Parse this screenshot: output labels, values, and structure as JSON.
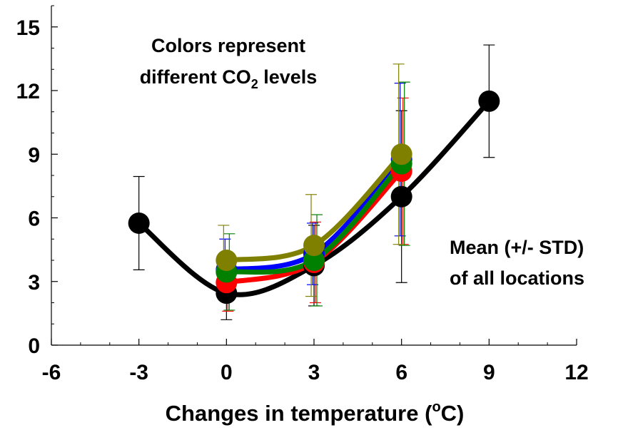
{
  "chart_data": {
    "type": "line",
    "xlabel": {
      "prefix": "Changes in temperature (",
      "sup": "o",
      "suffix": "C)"
    },
    "ylabel": "",
    "xlim": [
      -6,
      12
    ],
    "ylim": [
      0,
      16
    ],
    "x_ticks": [
      -6,
      -3,
      0,
      3,
      6,
      9,
      12
    ],
    "y_ticks": [
      0,
      3,
      6,
      9,
      12,
      15
    ],
    "x_minor_step": 1,
    "y_minor_step": 1,
    "grid": false,
    "annotations": {
      "colors_line1": "Colors represent",
      "colors_line2_prefix": "different CO",
      "colors_line2_sub": "2",
      "colors_line2_suffix": " levels",
      "mean_line1": "Mean  (+/- STD)",
      "mean_line2": "of all locations"
    },
    "series": [
      {
        "color": "#000000",
        "x": [
          -3,
          0,
          3,
          6,
          9
        ],
        "y": [
          5.75,
          2.45,
          3.75,
          7.0,
          11.5
        ],
        "err": [
          2.2,
          1.25,
          1.9,
          4.05,
          2.65
        ]
      },
      {
        "color": "#ff0000",
        "x": [
          0,
          3,
          6
        ],
        "y": [
          2.95,
          3.9,
          8.2
        ],
        "err": [
          1.35,
          1.9,
          3.45
        ]
      },
      {
        "color": "#0000ff",
        "x": [
          0,
          3,
          6
        ],
        "y": [
          3.55,
          4.3,
          8.75
        ],
        "err": [
          1.45,
          1.45,
          3.6
        ]
      },
      {
        "color": "#008000",
        "x": [
          0,
          3,
          6
        ],
        "y": [
          3.45,
          4.0,
          8.55
        ],
        "err": [
          1.8,
          2.15,
          3.85
        ]
      },
      {
        "color": "#808000",
        "x": [
          0,
          3,
          6
        ],
        "y": [
          4.0,
          4.7,
          9.0
        ],
        "err": [
          1.65,
          2.4,
          4.25
        ]
      }
    ]
  }
}
